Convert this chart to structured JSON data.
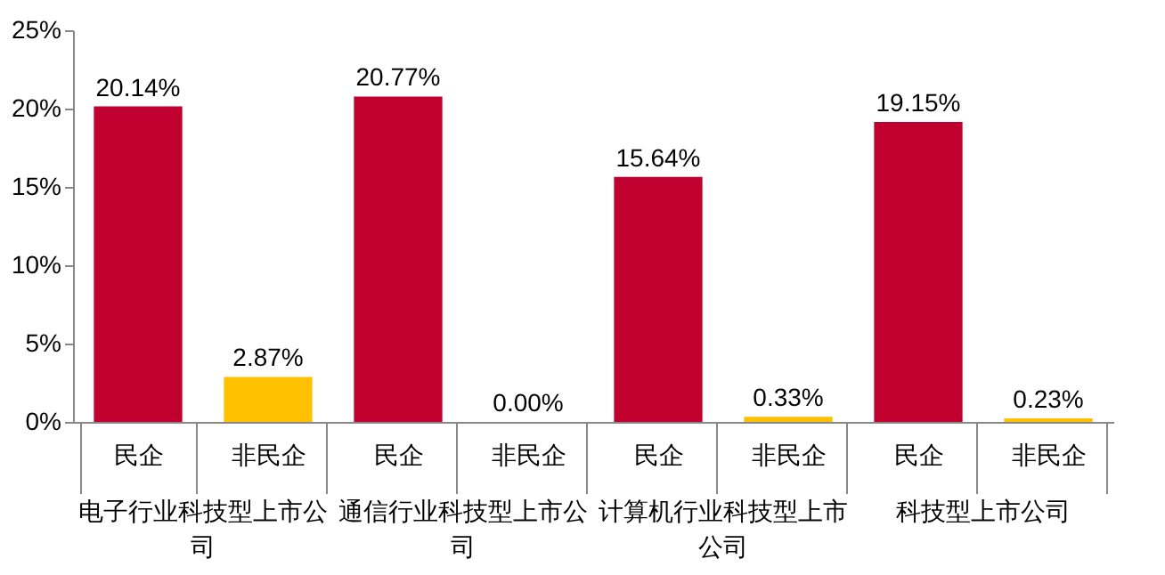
{
  "chart_data": {
    "type": "bar",
    "categories": [
      "民企",
      "非民企",
      "民企",
      "非民企",
      "民企",
      "非民企",
      "民企",
      "非民企"
    ],
    "values": [
      20.14,
      2.87,
      20.77,
      0.0,
      15.64,
      0.33,
      19.15,
      0.23
    ],
    "colors": [
      "#c0002e",
      "#ffc000",
      "#c0002e",
      "#ffc000",
      "#c0002e",
      "#ffc000",
      "#c0002e",
      "#ffc000"
    ],
    "value_labels": [
      "20.14%",
      "2.87%",
      "20.77%",
      "0.00%",
      "15.64%",
      "0.33%",
      "19.15%",
      "0.23%"
    ],
    "annotations": [
      "电子行业科技型上市公司",
      "通信行业科技型上市公司",
      "计算机行业科技型上市公司",
      "科技型上市公司"
    ],
    "ylim": [
      0,
      25
    ],
    "yticks": [
      {
        "value": 0,
        "label": "0%"
      },
      {
        "value": 5,
        "label": "5%"
      },
      {
        "value": 10,
        "label": "10%"
      },
      {
        "value": 15,
        "label": "15%"
      },
      {
        "value": 20,
        "label": "20%"
      },
      {
        "value": 25,
        "label": "25%"
      }
    ],
    "grid": false
  }
}
